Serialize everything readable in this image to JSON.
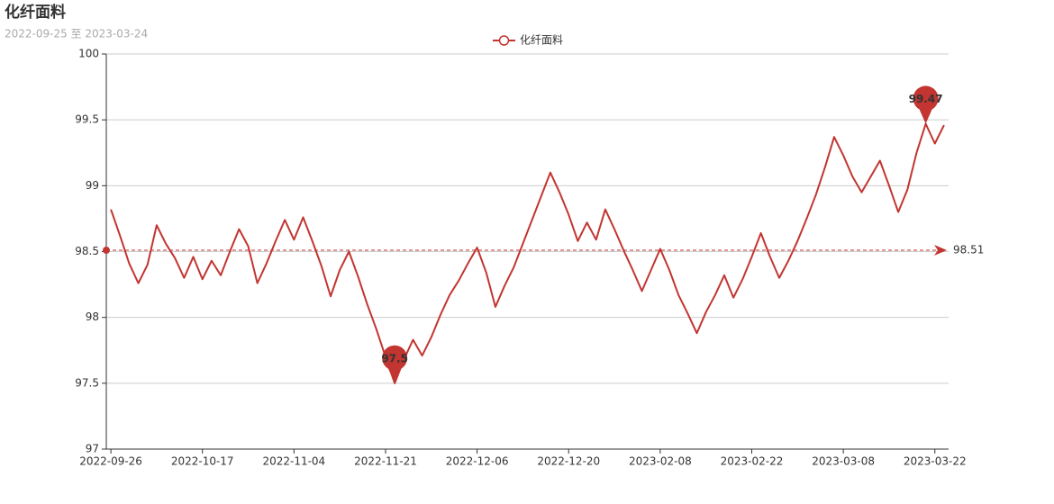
{
  "chart_data": {
    "type": "line",
    "title": "化纤面料",
    "subtitle": "2022-09-25 至 2023-03-24",
    "categories": [
      "2022-09-26",
      null,
      null,
      null,
      null,
      null,
      null,
      null,
      null,
      null,
      "2022-10-17",
      null,
      null,
      null,
      null,
      null,
      null,
      null,
      null,
      null,
      "2022-11-04",
      null,
      null,
      null,
      null,
      null,
      null,
      null,
      null,
      null,
      "2022-11-21",
      null,
      null,
      null,
      null,
      null,
      null,
      null,
      null,
      null,
      "2022-12-06",
      null,
      null,
      null,
      null,
      null,
      null,
      null,
      null,
      null,
      "2022-12-20",
      null,
      null,
      null,
      null,
      null,
      null,
      null,
      null,
      null,
      "2023-02-08",
      null,
      null,
      null,
      null,
      null,
      null,
      null,
      null,
      null,
      "2023-02-22",
      null,
      null,
      null,
      null,
      null,
      null,
      null,
      null,
      null,
      "2023-03-08",
      null,
      null,
      null,
      null,
      null,
      null,
      null,
      null,
      null,
      "2023-03-22",
      null
    ],
    "series": [
      {
        "name": "化纤面料",
        "color": "#c23531",
        "values": [
          98.82,
          98.62,
          98.41,
          98.26,
          98.4,
          98.7,
          98.56,
          98.45,
          98.3,
          98.46,
          98.29,
          98.43,
          98.32,
          98.5,
          98.67,
          98.54,
          98.26,
          98.41,
          98.58,
          98.74,
          98.59,
          98.76,
          98.58,
          98.39,
          98.16,
          98.36,
          98.5,
          98.31,
          98.1,
          97.91,
          97.7,
          97.5,
          97.68,
          97.83,
          97.71,
          97.85,
          98.02,
          98.17,
          98.28,
          98.41,
          98.53,
          98.34,
          98.08,
          98.24,
          98.38,
          98.56,
          98.74,
          98.92,
          99.1,
          98.95,
          98.78,
          98.58,
          98.72,
          98.59,
          98.82,
          98.67,
          98.51,
          98.36,
          98.2,
          98.36,
          98.52,
          98.36,
          98.17,
          98.03,
          97.88,
          98.04,
          98.17,
          98.32,
          98.15,
          98.29,
          98.46,
          98.64,
          98.46,
          98.3,
          98.43,
          98.58,
          98.75,
          98.93,
          99.14,
          99.37,
          99.23,
          99.07,
          98.95,
          99.07,
          99.19,
          99.0,
          98.8,
          98.97,
          99.25,
          99.47,
          99.32,
          99.46
        ]
      }
    ],
    "mark_points": [
      {
        "value": 97.5
      },
      {
        "value": 99.47
      }
    ],
    "mark_line": {
      "value": 98.51
    },
    "ylim": [
      97,
      100
    ],
    "yticks": [
      97,
      97.5,
      98,
      98.5,
      99,
      99.5,
      100
    ],
    "grid": true
  }
}
